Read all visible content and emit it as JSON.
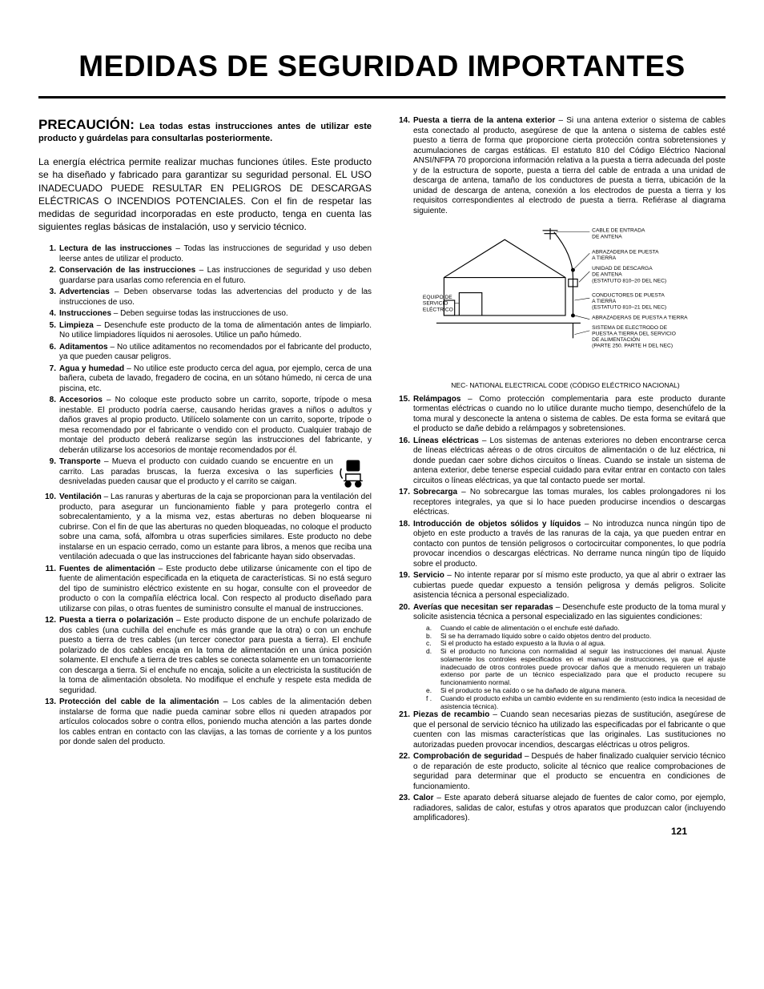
{
  "page_number": "121",
  "title": "MEDIDAS DE SEGURIDAD IMPORTANTES",
  "caution_lead": "PRECAUCIÓN:",
  "caution_rest": " Lea todas estas instrucciones antes de utilizar este producto y guárdelas para consultarlas posteriormente.",
  "intro": "La energía eléctrica permite realizar muchas funciones útiles. Este producto se ha diseñado y fabricado para garantizar su seguridad personal. EL USO INADECUADO PUEDE RESULTAR EN PELIGROS DE DESCARGAS ELÉCTRICAS O INCENDIOS POTENCIALES. Con el fin de respetar las medidas de seguridad incorporadas en este producto, tenga en cuenta las siguientes reglas básicas de instalación, uso y servicio técnico.",
  "diagram_caption": "NEC- NATIONAL ELECTRICAL CODE (CÓDIGO ELÉCTRICO NACIONAL)",
  "diagram_labels": {
    "antenna_lead": "CABLE DE ENTRADA\nDE ANTENA",
    "ground_clamp": "ABRAZADERA DE PUESTA\nA TIERRA",
    "discharge_unit": "UNIDAD DE DESCARGA\nDE ANTENA\n(ESTATUTO 810–20 DEL NEC)",
    "grounding_conductors": "CONDUCTORES DE PUESTA\nA TIERRA\n(ESTATUTO 810–21 DEL NEC)",
    "ground_clamps2": "ABRAZADERAS DE PUESTA A TIERRA",
    "electrode_system": "SISTEMA DE ELECTRODO DE\nPUESTA A TIERRA DEL SERVICIO\nDE ALIMENTACIÓN\n(PARTE 250. PARTE H DEL NEC)",
    "service_equipment": "EQUIPO DE\nSERVICIO\nELÉCTRICO"
  },
  "left_items": [
    {
      "n": "1.",
      "t": "Lectura de las instrucciones",
      "b": " – Todas las instrucciones de seguridad y uso deben leerse antes de utilizar el producto."
    },
    {
      "n": "2.",
      "t": "Conservación de las instrucciones",
      "b": " – Las instrucciones de seguridad y uso deben guardarse para usarlas como referencia en el futuro."
    },
    {
      "n": "3.",
      "t": "Advertencias",
      "b": " – Deben observarse todas las advertencias del producto y de las instrucciones de uso."
    },
    {
      "n": "4.",
      "t": "Instrucciones",
      "b": " – Deben seguirse todas las instrucciones de uso."
    },
    {
      "n": "5.",
      "t": "Limpieza",
      "b": " – Desenchufe este producto de la toma de alimentación antes de limpiarlo. No utilice limpiadores líquidos ni aerosoles. Utilice un paño húmedo."
    },
    {
      "n": "6.",
      "t": "Aditamentos",
      "b": " – No utilice aditamentos no recomendados por el fabricante del producto, ya que pueden causar peligros."
    },
    {
      "n": "7.",
      "t": "Agua y humedad",
      "b": " – No utilice este producto cerca del agua, por ejemplo, cerca de una bañera, cubeta de lavado, fregadero de cocina, en un sótano húmedo, ni cerca de una piscina, etc."
    },
    {
      "n": "8.",
      "t": "Accesorios",
      "b": " – No coloque este producto sobre un carrito, soporte, trípode o mesa inestable. El producto podría caerse, causando heridas graves a niños o adultos y daños graves al propio producto. Utilícelo solamente con un carrito, soporte, trípode o mesa recomendado por el fabricante o vendido con el producto. Cualquier trabajo de montaje del producto deberá realizarse según las instrucciones del fabricante, y deberán utilizarse los accesorios de montaje recomendados por él."
    },
    {
      "n": "9.",
      "t": "Transporte",
      "b": " – Mueva el producto con cuidado cuando se encuentre en un carrito. Las paradas bruscas, la fuerza excesiva o las superficies desniveladas pueden causar que el producto y el carrito se caigan.",
      "icon": true
    },
    {
      "n": "10.",
      "t": "Ventilación",
      "b": " – Las ranuras y aberturas de la caja se proporcionan para la ventilación del producto, para asegurar un funcionamiento fiable y para protegerlo contra el sobrecalentamiento, y a la misma vez, estas aberturas no deben bloquearse ni cubrirse. Con el fin de que las aberturas no queden bloqueadas, no coloque el producto sobre una cama, sofá, alfombra u otras superficies similares. Este producto no debe instalarse en un espacio cerrado, como un estante para libros, a menos que reciba una ventilación adecuada o que las instrucciones del fabricante hayan sido observadas."
    },
    {
      "n": "11.",
      "t": "Fuentes de alimentación",
      "b": " – Este producto debe utilizarse únicamente con el tipo de fuente de alimentación especificada en la etiqueta de características. Si no está seguro del tipo de suministro eléctrico existente en su hogar, consulte con el proveedor de producto o con la compañía eléctrica local. Con respecto al producto diseñado para utilizarse con pilas, o otras fuentes de suministro consulte el manual de instrucciones."
    },
    {
      "n": "12.",
      "t": "Puesta a tierra o polarización",
      "b": " – Este producto dispone de un enchufe polarizado de dos cables (una cuchilla del enchufe es más grande que la otra) o con un enchufe puesto a tierra de tres cables (un tercer conector para puesta a tierra). El enchufe polarizado de dos cables encaja en la toma de alimentación en una única posición solamente. El enchufe a tierra de tres cables se conecta solamente en un tomacorriente con descarga a tierra. Si el enchufe no encaja, solicite a un electricista la sustitución de la toma de alimentación obsoleta. No modifique el enchufe y respete esta medida de seguridad."
    },
    {
      "n": "13.",
      "t": "Protección del cable de la alimentación",
      "b": " – Los cables de la alimentación deben instalarse de forma que nadie pueda caminar sobre ellos ni queden atrapados por artículos colocados sobre o contra ellos, poniendo mucha atención a las partes donde los cables entran en contacto con las clavijas, a las tomas de corriente y a los puntos por donde salen del producto."
    }
  ],
  "right_items": [
    {
      "n": "14.",
      "t": "Puesta a tierra de la antena exterior",
      "b": " – Si una antena exterior o sistema de cables esta conectado al producto, asegúrese de que la antena o sistema de cables esté puesto a tierra de forma que proporcione cierta protección contra sobretensiones y acumulaciones de cargas estáticas. El estatuto 810 del Código Eléctrico Nacional ANSI/NFPA 70 proporciona información relativa a la puesta a tierra adecuada del poste y de la estructura de soporte, puesta a tierra del cable de entrada a una unidad de descarga de antena, tamaño de los conductores de puesta a tierra, ubicación de la unidad de descarga de antena, conexión a los electrodos de puesta a tierra y los requisitos correspondientes al electrodo de puesta a tierra. Refiérase al diagrama siguiente.",
      "diagram": true
    },
    {
      "n": "15.",
      "t": "Relámpagos",
      "b": " – Como protección complementaria para este producto durante tormentas eléctricas o cuando no lo utilice durante mucho tiempo, desenchúfelo de la toma mural y desconecte la antena o sistema de cables. De esta forma se evitará que el producto se dañe debido a relámpagos y sobretensiones."
    },
    {
      "n": "16.",
      "t": "Líneas eléctricas",
      "b": " – Los sistemas de antenas exteriores no deben encontrarse cerca de líneas eléctricas aéreas o de otros circuitos de alimentación o de luz eléctrica, ni donde puedan caer sobre dichos circuitos o líneas. Cuando se instale un sistema de antena exterior, debe tenerse especial cuidado para evitar entrar en contacto con tales circuitos o líneas eléctricas, ya que tal contacto puede ser mortal."
    },
    {
      "n": "17.",
      "t": "Sobrecarga",
      "b": " – No sobrecargue las tomas murales, los cables prolongadores ni los receptores integrales, ya que si lo hace pueden producirse incendios o descargas eléctricas."
    },
    {
      "n": "18.",
      "t": "Introducción de objetos sólidos y líquidos",
      "b": " – No introduzca nunca ningún tipo de objeto en este producto a través de las ranuras de la caja, ya que pueden entrar en contacto con puntos de tensión peligrosos o cortocircuitar componentes, lo que podría provocar incendios o descargas eléctricas. No derrame nunca ningún tipo de líquido sobre el producto."
    },
    {
      "n": "19.",
      "t": "Servicio",
      "b": " – No intente reparar por sí mismo este producto, ya que al abrir o extraer las cubiertas puede quedar expuesto a tensión peligrosa y demás peligros. Solicite asistencia técnica a personal especializado."
    },
    {
      "n": "20.",
      "t": "Averías que necesitan ser reparadas",
      "b": " – Desenchufe este producto de la toma mural y solicite asistencia técnica a personal especializado en las siguientes condiciones:",
      "sub": [
        {
          "lt": "a.",
          "txt": "Cuando el cable de alimentación o el enchufe esté dañado."
        },
        {
          "lt": "b.",
          "txt": "Si se ha derramado líquido sobre o caído objetos dentro del producto."
        },
        {
          "lt": "c.",
          "txt": "Si el producto ha estado expuesto a la lluvia o al agua."
        },
        {
          "lt": "d.",
          "txt": "Si el producto no funciona con normalidad al seguir las instrucciones del manual. Ajuste solamente los controles especificados en el manual de instrucciones, ya que el ajuste inadecuado de otros controles puede provocar daños que a menudo requieren un trabajo extenso por parte de un técnico especializado para que el producto recupere su funcionamiento normal."
        },
        {
          "lt": "e.",
          "txt": "Si el producto se ha caído o se ha dañado de alguna manera."
        },
        {
          "lt": "f .",
          "txt": "Cuando el producto exhiba un cambio evidente en su rendimiento (esto indica la necesidad de asistencia técnica)."
        }
      ]
    },
    {
      "n": "21.",
      "t": "Piezas de recambio",
      "b": " – Cuando sean necesarias piezas de sustitución, asegúrese de que el personal de servicio técnico ha utilizado las especificadas por el fabricante o que cuenten con las mismas características que las originales. Las sustituciones no autorizadas pueden provocar incendios, descargas eléctricas u otros peligros."
    },
    {
      "n": "22.",
      "t": "Comprobación de seguridad",
      "b": " – Después de haber finalizado cualquier servicio técnico o de reparación de este producto, solicite al técnico que realice comprobaciones de seguridad para determinar que el producto se encuentra en condiciones de funcionamiento."
    },
    {
      "n": "23.",
      "t": "Calor",
      "b": " – Este aparato deberá situarse alejado de fuentes de calor como, por ejemplo, radiadores, salidas de calor, estufas y otros aparatos que produzcan calor (incluyendo amplificadores)."
    }
  ]
}
